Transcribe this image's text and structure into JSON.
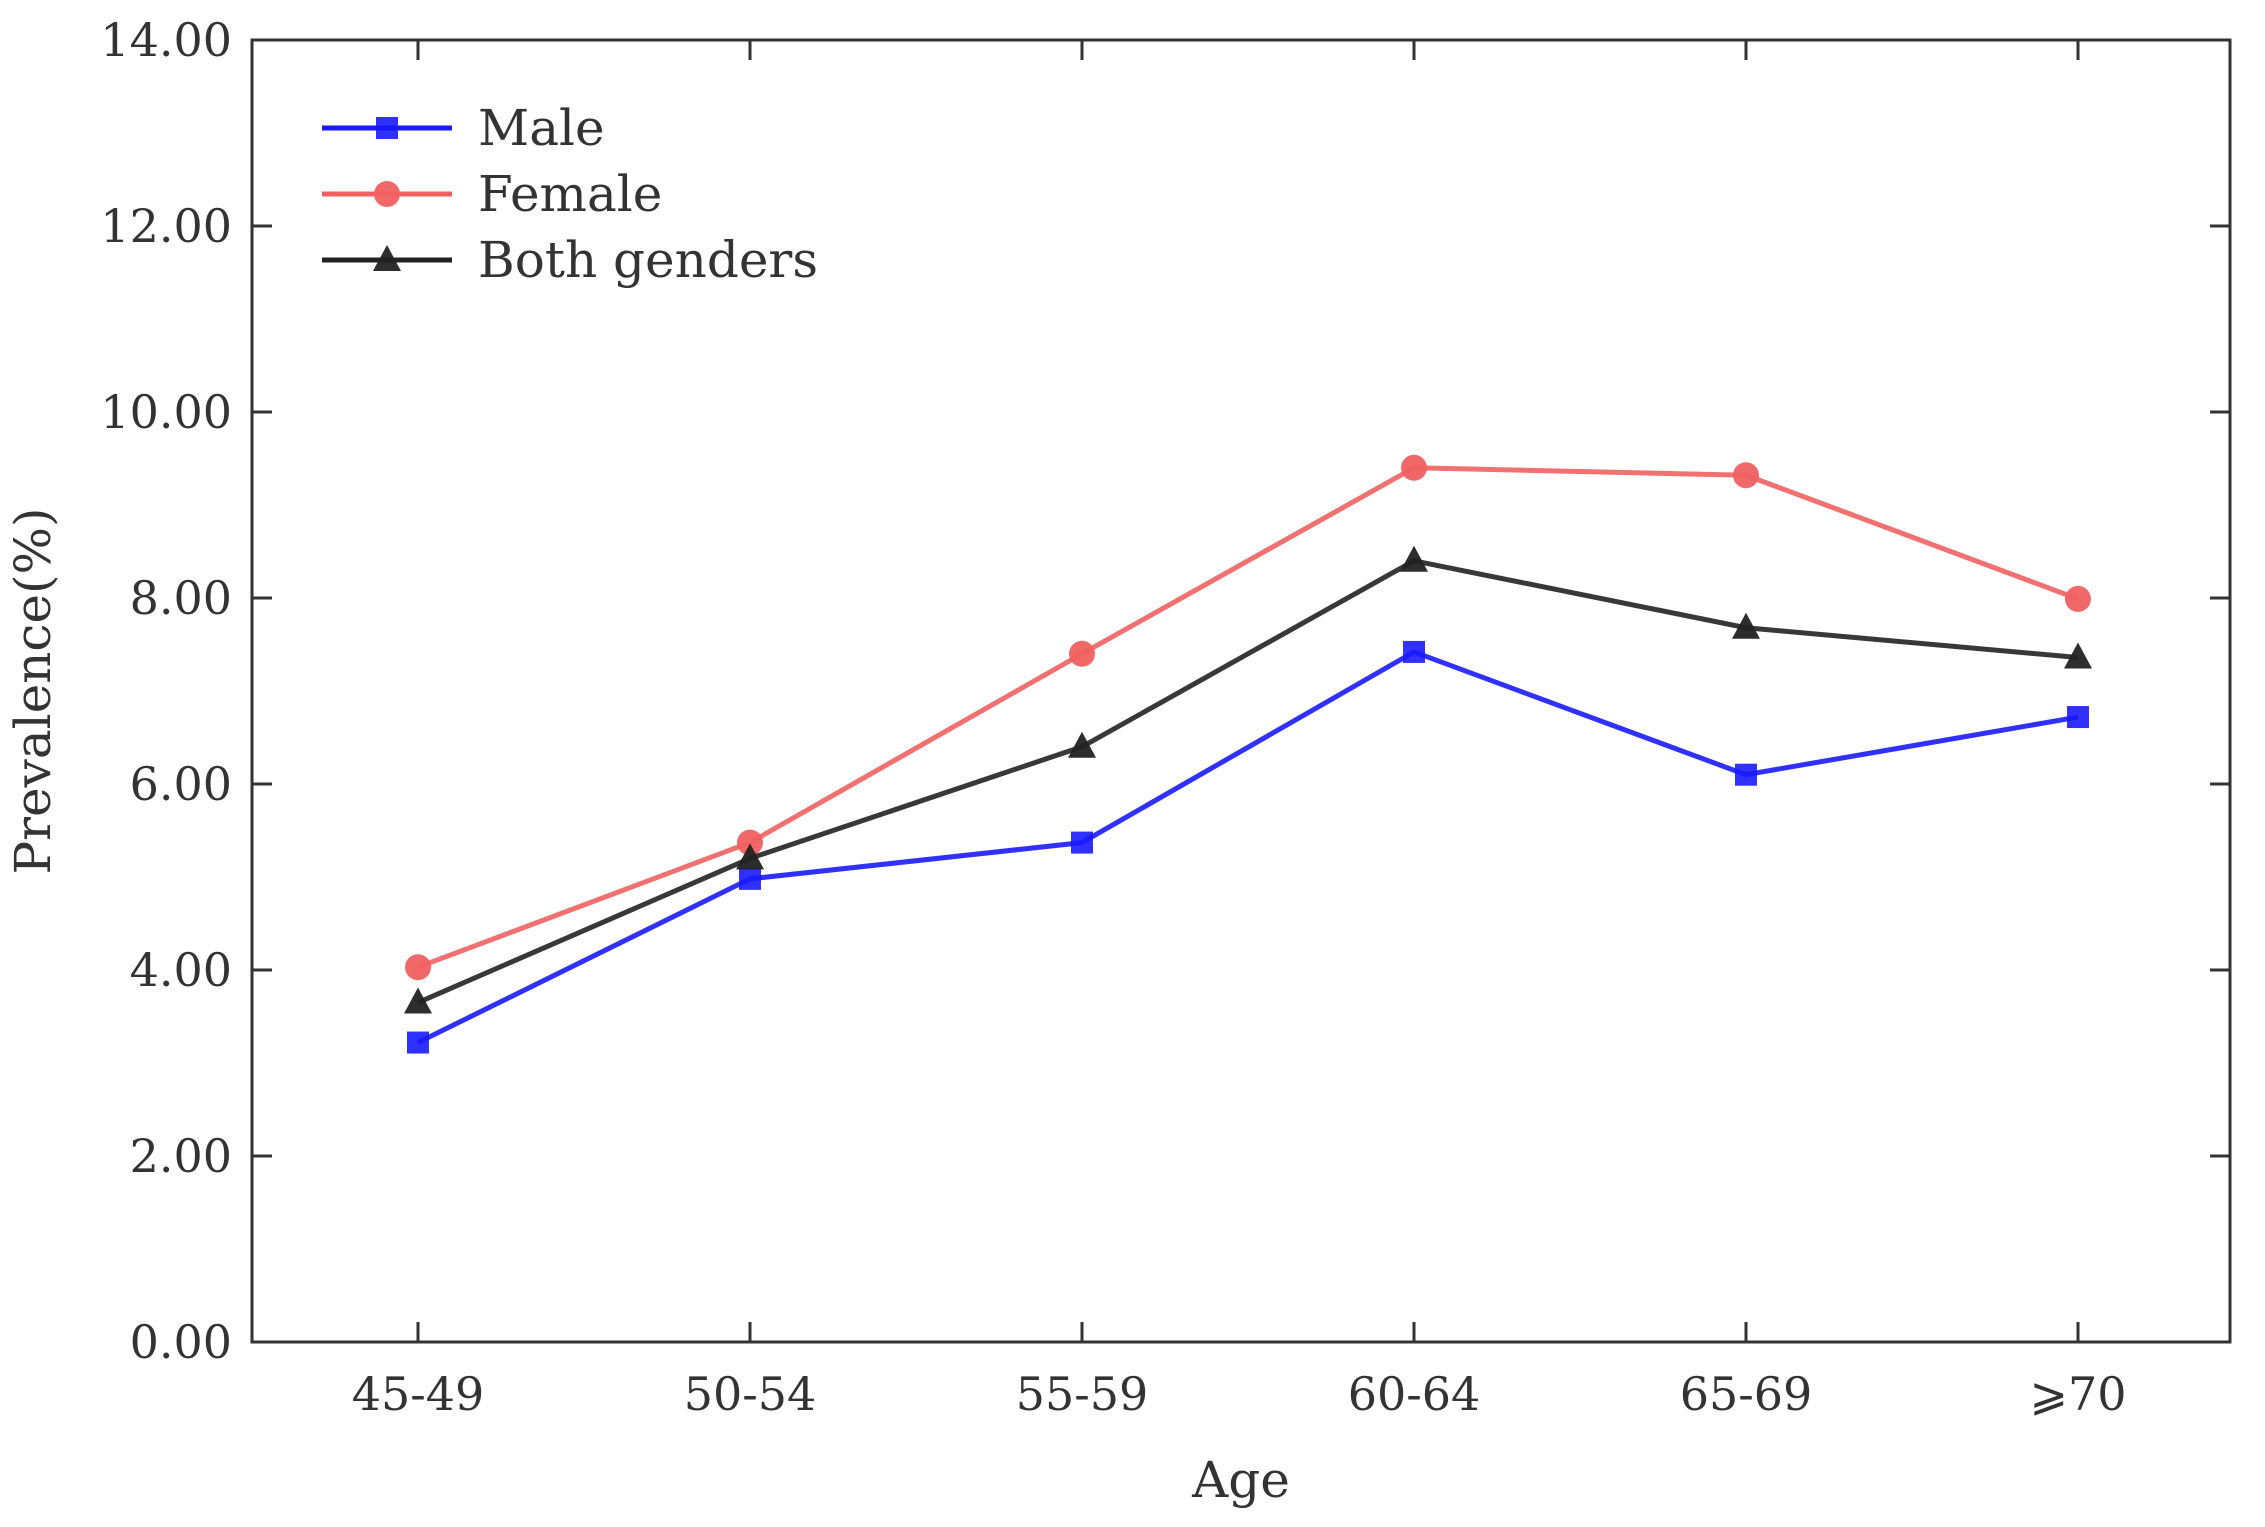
{
  "chart_data": {
    "type": "line",
    "title": "",
    "xlabel": "Age",
    "ylabel": "Prevalence(%)",
    "categories": [
      "45-49",
      "50-54",
      "55-59",
      "60-64",
      "65-69",
      "⩾70"
    ],
    "ylim": [
      0,
      14
    ],
    "yticks": [
      "0.00",
      "2.00",
      "4.00",
      "6.00",
      "8.00",
      "10.00",
      "12.00",
      "14.00"
    ],
    "legend_position": "top-left",
    "grid": false,
    "series": [
      {
        "name": "Male",
        "color": "#1a1aff",
        "marker": "square",
        "values": [
          3.22,
          4.98,
          5.37,
          7.42,
          6.1,
          6.72
        ]
      },
      {
        "name": "Female",
        "color": "#f06060",
        "marker": "circle",
        "values": [
          4.03,
          5.37,
          7.4,
          9.4,
          9.32,
          7.99
        ]
      },
      {
        "name": "Both genders",
        "color": "#222222",
        "marker": "triangle",
        "values": [
          3.65,
          5.2,
          6.4,
          8.4,
          7.68,
          7.36
        ]
      }
    ]
  }
}
